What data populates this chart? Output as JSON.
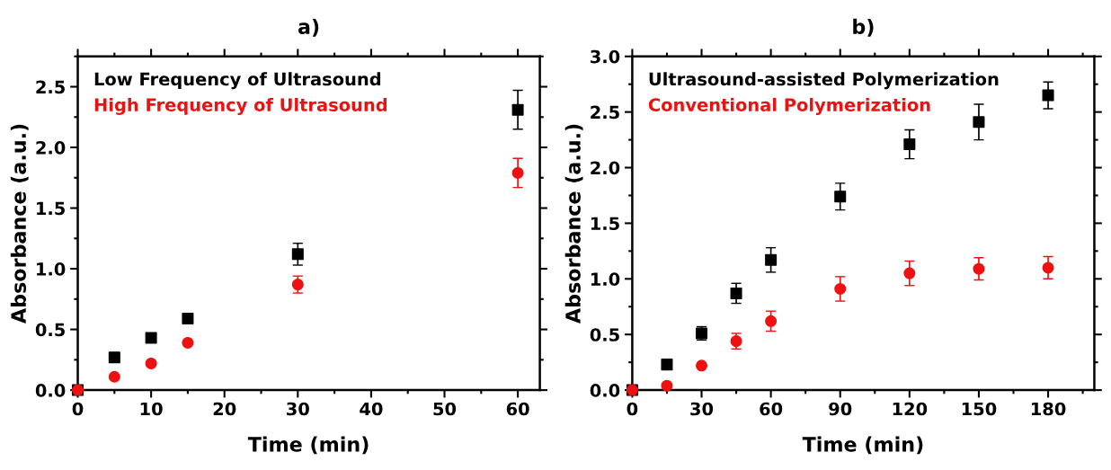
{
  "chart_data": [
    {
      "type": "scatter",
      "title": "a)",
      "xlabel": "Time (min)",
      "ylabel": "Absorbance (a.u.)",
      "xlim": [
        0,
        63
      ],
      "ylim": [
        0,
        2.75
      ],
      "xticks": [
        0,
        10,
        20,
        30,
        40,
        50,
        60
      ],
      "yticks": [
        {
          "value": 0,
          "label": "0.0"
        },
        0.5,
        {
          "value": 1,
          "label": "1.0"
        },
        1.5,
        {
          "value": 2,
          "label": "2.0"
        },
        2.5
      ],
      "grid": false,
      "legend": "top left",
      "x": [
        0,
        5,
        10,
        15,
        30,
        60
      ],
      "series": [
        {
          "name": "Low Frequency of Ultrasound",
          "color": "#000000",
          "marker": "square",
          "values": [
            0,
            0.27,
            0.43,
            0.59,
            1.12,
            2.31
          ],
          "errors": [
            null,
            null,
            null,
            null,
            0.09,
            0.16
          ]
        },
        {
          "name": "High Frequency of Ultrasound",
          "color": "#ee1111",
          "marker": "circle",
          "values": [
            0,
            0.11,
            0.22,
            0.39,
            0.87,
            1.79
          ],
          "errors": [
            null,
            null,
            null,
            null,
            0.07,
            0.12
          ]
        }
      ]
    },
    {
      "type": "scatter",
      "title": "b)",
      "xlabel": "Time (min)",
      "ylabel": "Absorbance (a.u.)",
      "xlim": [
        0,
        200
      ],
      "ylim": [
        0,
        3.0
      ],
      "xticks": [
        0,
        30,
        60,
        90,
        120,
        150,
        180
      ],
      "yticks": [
        {
          "value": 0,
          "label": "0.0"
        },
        0.5,
        {
          "value": 1,
          "label": "1.0"
        },
        1.5,
        {
          "value": 2,
          "label": "2.0"
        },
        2.5,
        {
          "value": 3,
          "label": "3.0"
        }
      ],
      "grid": false,
      "legend": "top left",
      "x": [
        0,
        15,
        30,
        45,
        60,
        90,
        120,
        150,
        180
      ],
      "series": [
        {
          "name": "Ultrasound-assisted Polymerization",
          "color": "#000000",
          "marker": "square",
          "values": [
            0,
            0.23,
            0.51,
            0.87,
            1.17,
            1.74,
            2.21,
            2.41,
            2.65
          ],
          "errors": [
            null,
            null,
            0.06,
            0.09,
            0.11,
            0.12,
            0.13,
            0.16,
            0.12
          ]
        },
        {
          "name": "Conventional Polymerization",
          "color": "#ee1111",
          "marker": "circle",
          "values": [
            0,
            0.04,
            0.22,
            0.44,
            0.62,
            0.91,
            1.05,
            1.09,
            1.1
          ],
          "errors": [
            null,
            null,
            null,
            0.07,
            0.09,
            0.11,
            0.11,
            0.1,
            0.1
          ]
        }
      ]
    }
  ]
}
